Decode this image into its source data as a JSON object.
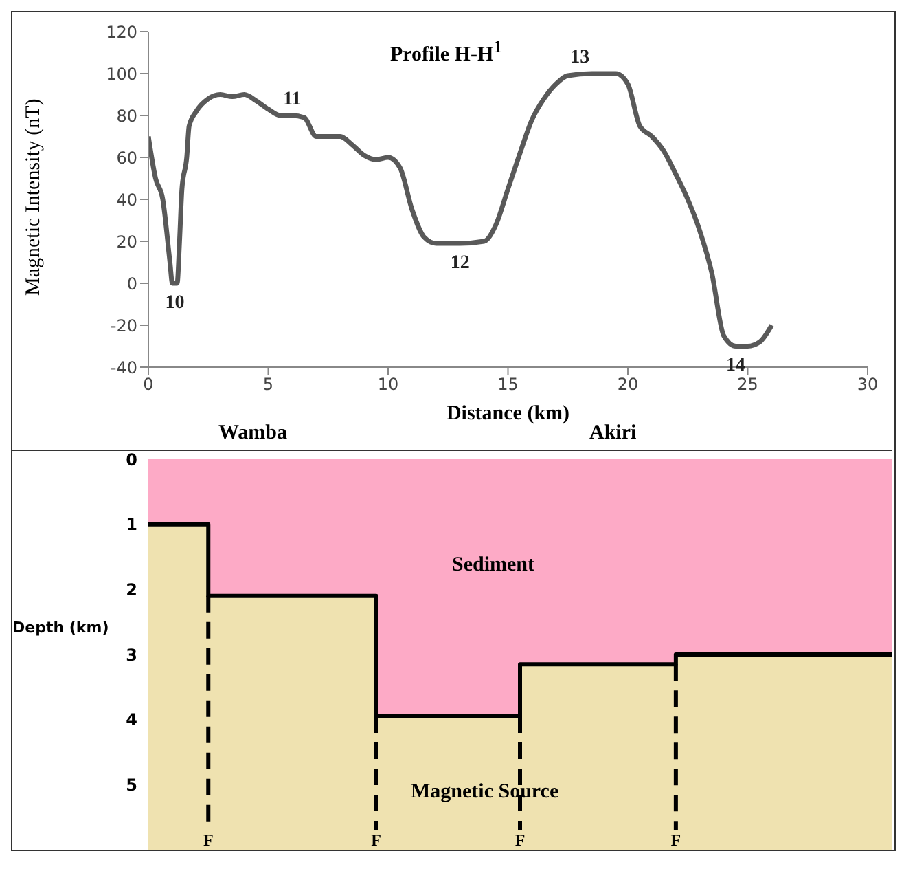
{
  "chart_data": [
    {
      "type": "line",
      "title": "Profile H-H$^{1}$",
      "xlabel": "Distance (km)",
      "ylabel": "Magnetic Intensity (nT)",
      "xlim": [
        0,
        30
      ],
      "xticks": [
        0,
        5,
        10,
        15,
        20,
        25,
        30
      ],
      "ylim": [
        -40,
        120
      ],
      "yticks": [
        -40,
        -20,
        0,
        20,
        40,
        60,
        80,
        100,
        120
      ],
      "series": [
        {
          "color": "#595959",
          "x": [
            0,
            0.3,
            0.6,
            0.9,
            1.0,
            1.2,
            1.3,
            1.4,
            1.6,
            1.7,
            2.0,
            2.5,
            3.0,
            3.5,
            4.0,
            4.5,
            5.0,
            5.5,
            6.0,
            6.5,
            7.0,
            7.5,
            8.0,
            8.5,
            9.0,
            9.5,
            10.0,
            10.5,
            11.0,
            11.5,
            12.0,
            13.0,
            14.0,
            14.5,
            15.0,
            15.5,
            16.0,
            16.5,
            17.0,
            17.5,
            18.5,
            19.5,
            20.0,
            20.5,
            21.0,
            21.5,
            22.0,
            22.5,
            23.0,
            23.5,
            24.0,
            24.5,
            25.0,
            25.5,
            26.0
          ],
          "values": [
            70,
            50,
            40,
            10,
            0,
            0,
            20,
            45,
            60,
            75,
            82,
            88,
            90,
            89,
            90,
            87,
            83,
            80,
            80,
            79,
            70,
            70,
            70,
            66,
            61,
            59,
            60,
            55,
            35,
            22,
            19,
            19,
            20,
            28,
            45,
            62,
            78,
            88,
            95,
            99,
            100,
            100,
            95,
            75,
            70,
            63,
            52,
            40,
            25,
            5,
            -25,
            -30,
            -30,
            -28,
            -20
          ]
        }
      ],
      "annotations": [
        {
          "text": "10",
          "x": 1.1,
          "y": 0
        },
        {
          "text": "11",
          "x": 6,
          "y": 80
        },
        {
          "text": "12",
          "x": 13,
          "y": 19
        },
        {
          "text": "13",
          "x": 18,
          "y": 100
        },
        {
          "text": "14",
          "x": 24.5,
          "y": -30
        }
      ],
      "marker": "none"
    },
    {
      "type": "step",
      "ylabel": "Depth (km)",
      "ylim": [
        6,
        0
      ],
      "yticks": [
        0,
        1,
        2,
        3,
        4,
        5
      ],
      "tick_labels": "y",
      "categories": [
        null,
        null,
        null,
        null,
        null,
        null,
        null,
        null,
        null,
        null,
        null,
        null,
        null,
        null,
        null,
        null,
        null,
        null,
        null,
        null,
        null,
        null,
        null,
        null,
        null,
        null,
        null,
        null,
        null,
        null,
        null,
        null,
        null,
        null,
        null,
        null,
        null,
        null,
        null,
        null,
        null,
        null,
        null,
        null,
        null,
        null,
        null,
        null,
        null,
        null,
        null,
        null,
        null,
        null,
        null,
        null,
        null,
        null,
        null,
        null,
        null,
        null,
        null
      ],
      "bands": [
        {
          "axis": "y",
          "from": 0,
          "to": 6,
          "label": "Magnetic Source",
          "color": "#efe2b0"
        }
      ],
      "series": [
        {
          "name": "Sediment",
          "type": "area",
          "color": "#fdaac6",
          "values": [
            1,
            1,
            1,
            1,
            1,
            2.1,
            2.1,
            2.1,
            2.1,
            2.1,
            2.1,
            2.1,
            2.1,
            2.1,
            2.1,
            2.1,
            2.1,
            2.1,
            2.1,
            3.95,
            3.95,
            3.95,
            3.95,
            3.95,
            3.95,
            3.95,
            3.95,
            3.95,
            3.95,
            3.95,
            3.95,
            3.15,
            3.15,
            3.15,
            3.15,
            3.15,
            3.15,
            3.15,
            3.15,
            3.15,
            3.15,
            3.15,
            3.15,
            3.15,
            3,
            3,
            3,
            3,
            3,
            3,
            3,
            3,
            3,
            3,
            3,
            3,
            3,
            3,
            3,
            3,
            3,
            3,
            3
          ]
        },
        {
          "type": "step",
          "color": "#000000",
          "values": [
            1,
            1,
            1,
            1,
            1,
            2.1,
            2.1,
            2.1,
            2.1,
            2.1,
            2.1,
            2.1,
            2.1,
            2.1,
            2.1,
            2.1,
            2.1,
            2.1,
            2.1,
            3.95,
            3.95,
            3.95,
            3.95,
            3.95,
            3.95,
            3.95,
            3.95,
            3.95,
            3.95,
            3.95,
            3.95,
            3.15,
            3.15,
            3.15,
            3.15,
            3.15,
            3.15,
            3.15,
            3.15,
            3.15,
            3.15,
            3.15,
            3.15,
            3.15,
            3,
            3,
            3,
            3,
            3,
            3,
            3,
            3,
            3,
            3,
            3,
            3,
            3,
            3,
            3,
            3,
            3,
            3,
            3
          ]
        }
      ],
      "annotations": [
        "Wamba",
        "Akiri",
        "F",
        "F",
        "F",
        "F"
      ]
    }
  ]
}
